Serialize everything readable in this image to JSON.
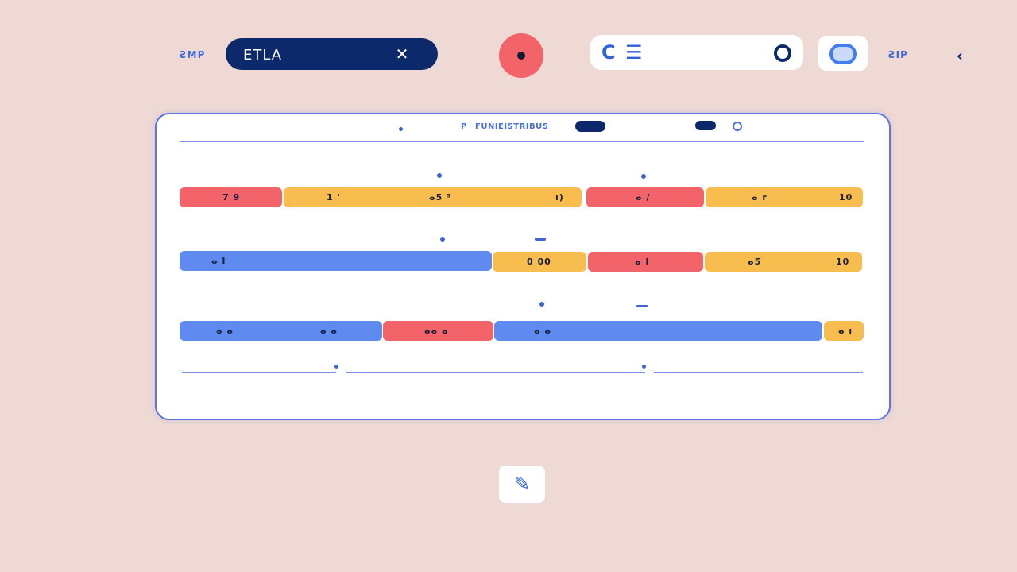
{
  "topbar": {
    "left_label": "ƧMP",
    "search_value": "ETLA",
    "close_glyph": "✕",
    "field_glyph_1": "C",
    "field_glyph_2": "☰",
    "right_label": "ƧIP",
    "chevron_glyph": "‹"
  },
  "panel": {
    "title_prefix": "P",
    "title": "FUNIEISTRIBUS"
  },
  "rows": [
    {
      "bars": [
        {
          "labels": [
            "7 9"
          ]
        },
        {
          "labels": [
            "1 '",
            "ⴰ5 ⁵",
            "ı)"
          ]
        },
        {
          "labels": [
            "ⴰ /"
          ]
        },
        {
          "labels": [
            "ⴰ r",
            "10"
          ]
        }
      ]
    },
    {
      "bars": [
        {
          "labels": [
            "ⴰ I"
          ]
        },
        {
          "labels": [
            "0 00"
          ]
        },
        {
          "labels": [
            "ⴰ I"
          ]
        },
        {
          "labels": [
            "ⴰ5",
            "10"
          ]
        }
      ]
    },
    {
      "bars": [
        {
          "labels": [
            "ⴰ ⴰ",
            "ⴰ ⴰ"
          ]
        },
        {
          "labels": [
            "ⴰⴰ ⴰ"
          ]
        },
        {
          "labels": [
            "ⴰ ⴰ"
          ]
        },
        {
          "labels": [
            "ⴰ ı"
          ]
        }
      ]
    }
  ],
  "footer": {
    "edit_glyph": "✎"
  },
  "colors": {
    "background": "#efd9d4",
    "navy": "#0c2a6b",
    "red": "#f2636a",
    "yellow": "#f7bd4f",
    "blue": "#5f8af0",
    "accent": "#4169d8"
  }
}
